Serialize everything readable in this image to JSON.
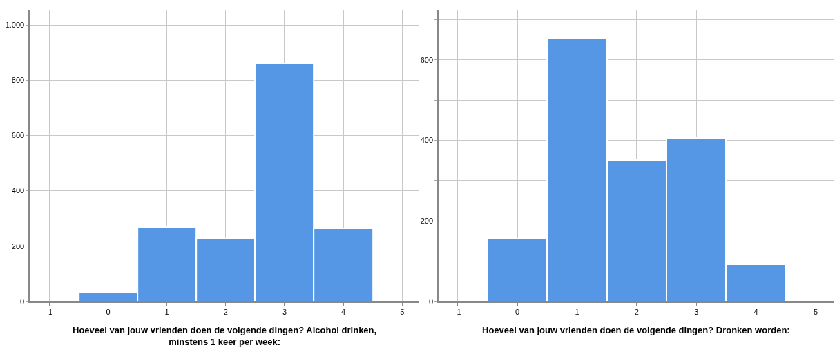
{
  "chart_data": [
    {
      "type": "histogram",
      "xlabel": "Hoeveel van jouw vrienden doen de volgende dingen? Alcohol drinken,\nminstens 1 keer per week:",
      "bins": [
        -0.5,
        0.5,
        1.5,
        2.5,
        3.5,
        4.5
      ],
      "values": [
        33,
        270,
        227,
        861,
        265
      ],
      "color": "#5597e5",
      "xlim": [
        -1.33,
        5.29
      ],
      "xticks": [
        -1,
        0,
        1,
        2,
        3,
        4,
        5
      ],
      "ylim": [
        0,
        1055
      ],
      "yticks": [
        0,
        200,
        400,
        600,
        800,
        {
          "value": 1000,
          "label": "1.000"
        }
      ],
      "grid": true
    },
    {
      "type": "histogram",
      "xlabel": "Hoeveel van jouw vrienden doen de volgende dingen? Dronken worden:",
      "bins": [
        -0.5,
        0.5,
        1.5,
        2.5,
        3.5,
        4.5
      ],
      "values": [
        156,
        654,
        352,
        407,
        92
      ],
      "color": "#5597e5",
      "xlim": [
        -1.32,
        5.3
      ],
      "xticks": [
        -1,
        0,
        1,
        2,
        3,
        4,
        5
      ],
      "ylim": [
        0,
        725
      ],
      "yticks": [
        0,
        {
          "value": 100,
          "label": null
        },
        200,
        {
          "value": 300,
          "label": null
        },
        400,
        {
          "value": 500,
          "label": null
        },
        600,
        {
          "value": 700,
          "label": null
        }
      ],
      "grid": true
    }
  ]
}
